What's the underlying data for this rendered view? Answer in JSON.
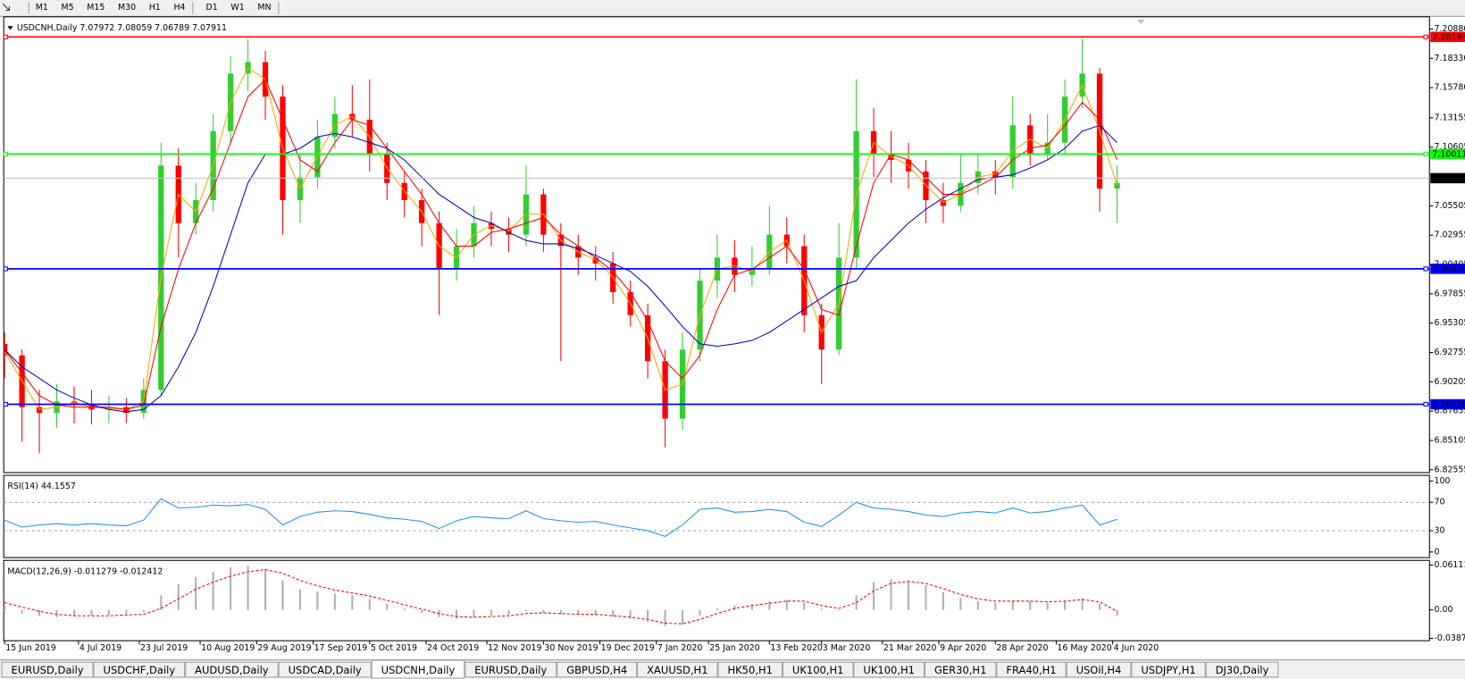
{
  "toolbar": {
    "timeframes": [
      "M1",
      "M5",
      "M15",
      "M30",
      "H1",
      "H4",
      "D1",
      "W1",
      "MN"
    ]
  },
  "tabs": {
    "items": [
      "EURUSD,Daily",
      "USDCHF,Daily",
      "AUDUSD,Daily",
      "USDCAD,Daily",
      "USDCNH,Daily",
      "EURUSD,Daily",
      "GBPUSD,H4",
      "XAUUSD,H1",
      "HK50,H1",
      "UK100,H1",
      "UK100,H1",
      "GER30,H1",
      "FRA40,H1",
      "USOil,H4",
      "USDJPY,H1",
      "DJ30,Daily"
    ],
    "active": 4
  },
  "chart_data": [
    {
      "type": "candlestick",
      "title": "USDCNH,Daily  7.07972 7.08059 7.06789 7.07911",
      "up_color": "#32cd32",
      "down_color": "#ff0000",
      "x": [
        0,
        4,
        8,
        12,
        16,
        20,
        24,
        28,
        32,
        36,
        40,
        44,
        48,
        52,
        56,
        60,
        64,
        68,
        72,
        76,
        80,
        84,
        88,
        92,
        96,
        100,
        104,
        108,
        112,
        116,
        120,
        124,
        128,
        132,
        136,
        140,
        144,
        148,
        152,
        156,
        160,
        164,
        168,
        172,
        176,
        180,
        184,
        188,
        192,
        196,
        200,
        204,
        208,
        212,
        216,
        220,
        224,
        228,
        232,
        236,
        240,
        244,
        248,
        252,
        256
      ],
      "open": [
        6.935,
        6.925,
        6.88,
        6.875,
        6.885,
        6.882,
        6.878,
        6.88,
        6.875,
        6.895,
        7.09,
        7.04,
        7.06,
        7.12,
        7.17,
        7.18,
        7.15,
        7.06,
        7.08,
        7.115,
        7.135,
        7.13,
        7.1,
        7.075,
        7.06,
        7.04,
        7.0,
        7.02,
        7.04,
        7.035,
        7.03,
        7.065,
        7.03,
        7.02,
        7.01,
        7.005,
        6.98,
        6.96,
        6.92,
        6.87,
        6.93,
        6.99,
        7.01,
        6.995,
        7.0,
        7.03,
        7.02,
        6.96,
        6.93,
        7.01,
        7.12,
        7.1,
        7.095,
        7.085,
        7.06,
        7.055,
        7.075,
        7.085,
        7.08,
        7.125,
        7.1,
        7.11,
        7.15,
        7.17,
        7.07
      ],
      "high": [
        6.945,
        6.93,
        6.895,
        6.9,
        6.898,
        6.895,
        6.89,
        6.888,
        6.905,
        7.11,
        7.105,
        7.075,
        7.135,
        7.185,
        7.2,
        7.19,
        7.16,
        7.1,
        7.13,
        7.15,
        7.16,
        7.165,
        7.11,
        7.085,
        7.07,
        7.05,
        7.035,
        7.055,
        7.05,
        7.045,
        7.09,
        7.07,
        7.04,
        7.03,
        7.02,
        7.015,
        6.99,
        6.97,
        6.93,
        6.945,
        7.0,
        7.03,
        7.025,
        7.02,
        7.055,
        7.045,
        7.03,
        6.97,
        7.04,
        7.165,
        7.14,
        7.12,
        7.11,
        7.095,
        7.075,
        7.1,
        7.1,
        7.095,
        7.15,
        7.135,
        7.135,
        7.165,
        7.2,
        7.175,
        7.09
      ],
      "low": [
        6.905,
        6.85,
        6.84,
        6.862,
        6.866,
        6.865,
        6.866,
        6.866,
        6.87,
        6.89,
        7.01,
        7.03,
        7.05,
        7.11,
        7.155,
        7.13,
        7.03,
        7.04,
        7.07,
        7.105,
        7.115,
        7.085,
        7.06,
        7.045,
        7.02,
        6.96,
        6.99,
        7.01,
        7.02,
        7.015,
        7.02,
        7.015,
        6.92,
        6.995,
        6.99,
        6.97,
        6.95,
        6.905,
        6.845,
        6.86,
        6.92,
        6.975,
        6.98,
        6.985,
        6.995,
        7.005,
        6.945,
        6.9,
        6.925,
        7.0,
        7.08,
        7.075,
        7.07,
        7.04,
        7.04,
        7.05,
        7.065,
        7.065,
        7.07,
        7.09,
        7.095,
        7.1,
        7.14,
        7.05,
        7.04
      ],
      "close": [
        6.925,
        6.88,
        6.875,
        6.885,
        6.882,
        6.878,
        6.88,
        6.875,
        6.895,
        7.09,
        7.04,
        7.06,
        7.12,
        7.17,
        7.18,
        7.15,
        7.06,
        7.08,
        7.115,
        7.135,
        7.13,
        7.1,
        7.075,
        7.06,
        7.04,
        7.0,
        7.02,
        7.04,
        7.035,
        7.03,
        7.065,
        7.03,
        7.02,
        7.01,
        7.005,
        6.98,
        6.96,
        6.92,
        6.87,
        6.93,
        6.99,
        7.01,
        6.995,
        7.0,
        7.03,
        7.02,
        6.96,
        6.93,
        7.01,
        7.12,
        7.1,
        7.095,
        7.085,
        7.06,
        7.055,
        7.075,
        7.085,
        7.08,
        7.125,
        7.1,
        7.11,
        7.15,
        7.17,
        7.07,
        7.075
      ],
      "series": [
        {
          "color": "#ffa500",
          "style": "line",
          "values": [
            6.928,
            6.903,
            6.878,
            6.88,
            6.884,
            6.88,
            6.879,
            6.878,
            6.885,
            6.993,
            7.065,
            7.05,
            7.09,
            7.145,
            7.175,
            7.165,
            7.105,
            7.07,
            7.098,
            7.125,
            7.133,
            7.115,
            7.088,
            7.068,
            7.05,
            7.02,
            7.01,
            7.03,
            7.038,
            7.033,
            7.048,
            7.048,
            7.025,
            7.015,
            7.008,
            6.993,
            6.97,
            6.94,
            6.895,
            6.9,
            6.96,
            7.0,
            7.003,
            6.998,
            7.015,
            7.025,
            6.99,
            6.945,
            6.97,
            7.065,
            7.11,
            7.098,
            7.09,
            7.073,
            7.058,
            7.065,
            7.08,
            7.083,
            7.103,
            7.113,
            7.105,
            7.13,
            7.16,
            7.12,
            7.073
          ]
        },
        {
          "color": "#ff0000",
          "style": "line",
          "values": [
            6.93,
            6.91,
            6.89,
            6.882,
            6.88,
            6.88,
            6.88,
            6.878,
            6.882,
            6.95,
            7.0,
            7.04,
            7.07,
            7.11,
            7.15,
            7.165,
            7.13,
            7.095,
            7.085,
            7.11,
            7.13,
            7.125,
            7.105,
            7.085,
            7.065,
            7.04,
            7.02,
            7.02,
            7.032,
            7.035,
            7.04,
            7.045,
            7.03,
            7.02,
            7.01,
            6.998,
            6.98,
            6.955,
            6.92,
            6.905,
            6.925,
            6.965,
            6.995,
            7.0,
            7.01,
            7.02,
            7.0,
            6.965,
            6.96,
            7.02,
            7.075,
            7.1,
            7.095,
            7.08,
            7.065,
            7.065,
            7.072,
            7.08,
            7.095,
            7.105,
            7.108,
            7.125,
            7.145,
            7.13,
            7.095
          ]
        },
        {
          "color": "#0000cd",
          "style": "line",
          "values": [
            6.93,
            6.915,
            6.905,
            6.895,
            6.888,
            6.882,
            6.878,
            6.876,
            6.878,
            6.89,
            6.915,
            6.945,
            6.985,
            7.03,
            7.075,
            7.1,
            7.1,
            7.105,
            7.115,
            7.118,
            7.115,
            7.11,
            7.105,
            7.095,
            7.08,
            7.065,
            7.055,
            7.045,
            7.04,
            7.032,
            7.025,
            7.022,
            7.022,
            7.018,
            7.012,
            7.005,
            6.998,
            6.985,
            6.968,
            6.95,
            6.935,
            6.933,
            6.935,
            6.938,
            6.945,
            6.955,
            6.965,
            6.975,
            6.985,
            6.99,
            7.01,
            7.025,
            7.04,
            7.052,
            7.062,
            7.07,
            7.078,
            7.08,
            7.082,
            7.088,
            7.095,
            7.105,
            7.12,
            7.125,
            7.11
          ]
        }
      ],
      "levels": [
        {
          "value": 7.20193,
          "label": "7.20193",
          "color": "#ff0000",
          "label_fill": "#ff0000"
        },
        {
          "value": 7.10011,
          "label": "7.10011",
          "color": "#00ff00",
          "label_fill": "#00ff00"
        },
        {
          "value": 7.07911,
          "label": "7.07911",
          "color": "#c0c0c0",
          "label_fill": "#000000"
        },
        {
          "value": 7.00029,
          "label": "7.00029",
          "color": "#0000ff",
          "label_fill": "#0000ff"
        },
        {
          "value": 6.8825,
          "label": "6.88250",
          "color": "#0000ff",
          "label_fill": "#0000ff"
        }
      ],
      "xlim": [
        -0.2,
        327.9
      ],
      "ylim": [
        6.8231,
        7.2194
      ],
      "yticks": [
        {
          "value": 7.2088,
          "label": "7.20880"
        },
        {
          "value": 7.1833,
          "label": "7.18330"
        },
        {
          "value": 7.1578,
          "label": "7.15780"
        },
        {
          "value": 7.13155,
          "label": "7.13155"
        },
        {
          "value": 7.10605,
          "label": "7.10605"
        },
        {
          "value": 7.05505,
          "label": "7.05505"
        },
        {
          "value": 7.02955,
          "label": "7.02955"
        },
        {
          "value": 7.00405,
          "label": "7.00405"
        },
        {
          "value": 6.97855,
          "label": "6.97855"
        },
        {
          "value": 6.95305,
          "label": "6.95305"
        },
        {
          "value": 6.92755,
          "label": "6.92755"
        },
        {
          "value": 6.90205,
          "label": "6.90205"
        },
        {
          "value": 6.87655,
          "label": "6.87655"
        },
        {
          "value": 6.85105,
          "label": "6.85105"
        },
        {
          "value": 6.82555,
          "label": "6.82555"
        }
      ],
      "xticks": [
        {
          "value": 0,
          "label": "15 Jun 2019"
        },
        {
          "value": 17,
          "label": "4 Jul 2019"
        },
        {
          "value": 31,
          "label": "23 Jul 2019"
        },
        {
          "value": 45,
          "label": "10 Aug 2019"
        },
        {
          "value": 58,
          "label": "29 Aug 2019"
        },
        {
          "value": 71,
          "label": "17 Sep 2019"
        },
        {
          "value": 84,
          "label": "5 Oct 2019"
        },
        {
          "value": 97,
          "label": "24 Oct 2019"
        },
        {
          "value": 111,
          "label": "12 Nov 2019"
        },
        {
          "value": 124,
          "label": "30 Nov 2019"
        },
        {
          "value": 137,
          "label": "19 Dec 2019"
        },
        {
          "value": 150,
          "label": "7 Jan 2020"
        },
        {
          "value": 162,
          "label": "25 Jan 2020"
        },
        {
          "value": 176,
          "label": "13 Feb 2020"
        },
        {
          "value": 188,
          "label": "3 Mar 2020"
        },
        {
          "value": 202,
          "label": "21 Mar 2020"
        },
        {
          "value": 215,
          "label": "9 Apr 2020"
        },
        {
          "value": 228,
          "label": "28 Apr 2020"
        },
        {
          "value": 242,
          "label": "16 May 2020"
        },
        {
          "value": 255,
          "label": "4 Jun 2020"
        }
      ]
    },
    {
      "type": "line",
      "title": "RSI(14) 44.1557",
      "x": [
        0,
        4,
        8,
        12,
        16,
        20,
        24,
        28,
        32,
        36,
        40,
        44,
        48,
        52,
        56,
        60,
        64,
        68,
        72,
        76,
        80,
        84,
        88,
        92,
        96,
        100,
        104,
        108,
        112,
        116,
        120,
        124,
        128,
        132,
        136,
        140,
        144,
        148,
        152,
        156,
        160,
        164,
        168,
        172,
        176,
        180,
        184,
        188,
        192,
        196,
        200,
        204,
        208,
        212,
        216,
        220,
        224,
        228,
        232,
        236,
        240,
        244,
        248,
        252,
        256
      ],
      "series": [
        {
          "color": "#1e90ff",
          "style": "line",
          "values": [
            45,
            35,
            38,
            40,
            38,
            40,
            38,
            37,
            45,
            75,
            62,
            63,
            66,
            65,
            67,
            60,
            38,
            50,
            56,
            58,
            57,
            53,
            48,
            46,
            43,
            33,
            44,
            50,
            48,
            47,
            58,
            47,
            44,
            42,
            43,
            38,
            34,
            30,
            22,
            38,
            60,
            62,
            56,
            57,
            60,
            57,
            42,
            36,
            52,
            70,
            62,
            60,
            57,
            52,
            50,
            55,
            57,
            55,
            62,
            55,
            57,
            62,
            66,
            38,
            46
          ]
        }
      ],
      "levels": [
        70,
        30
      ],
      "xlim": [
        -0.2,
        327.9
      ],
      "ylim": [
        -7.9,
        107.9
      ],
      "yticks": [
        100,
        70,
        30,
        0
      ]
    },
    {
      "type": "bar",
      "title": "MACD(12,26,9) -0.011279 -0.012412",
      "x": [
        0,
        4,
        8,
        12,
        16,
        20,
        24,
        28,
        32,
        36,
        40,
        44,
        48,
        52,
        56,
        60,
        64,
        68,
        72,
        76,
        80,
        84,
        88,
        92,
        96,
        100,
        104,
        108,
        112,
        116,
        120,
        124,
        128,
        132,
        136,
        140,
        144,
        148,
        152,
        156,
        160,
        164,
        168,
        172,
        176,
        180,
        184,
        188,
        192,
        196,
        200,
        204,
        208,
        212,
        216,
        220,
        224,
        228,
        232,
        236,
        240,
        244,
        248,
        252,
        256
      ],
      "series": [
        {
          "color": "#b0b0b0",
          "style": "bar",
          "values": [
            0.005,
            -0.005,
            -0.008,
            -0.01,
            -0.009,
            -0.008,
            -0.007,
            -0.006,
            -0.003,
            0.02,
            0.035,
            0.045,
            0.052,
            0.058,
            0.06,
            0.055,
            0.04,
            0.028,
            0.025,
            0.022,
            0.02,
            0.015,
            0.008,
            0.002,
            -0.004,
            -0.01,
            -0.012,
            -0.01,
            -0.008,
            -0.007,
            -0.002,
            -0.004,
            -0.006,
            -0.006,
            -0.007,
            -0.009,
            -0.012,
            -0.016,
            -0.022,
            -0.02,
            -0.008,
            0.002,
            0.006,
            0.008,
            0.012,
            0.014,
            0.01,
            0.002,
            0.0,
            0.02,
            0.038,
            0.042,
            0.04,
            0.034,
            0.024,
            0.016,
            0.012,
            0.01,
            0.012,
            0.012,
            0.01,
            0.012,
            0.016,
            0.008,
            -0.008
          ]
        },
        {
          "color": "#ff0000",
          "style": "dashed",
          "values": [
            0.01,
            0.004,
            -0.002,
            -0.006,
            -0.008,
            -0.008,
            -0.008,
            -0.007,
            -0.006,
            0.002,
            0.015,
            0.028,
            0.038,
            0.046,
            0.052,
            0.055,
            0.05,
            0.04,
            0.033,
            0.027,
            0.023,
            0.019,
            0.013,
            0.007,
            0.001,
            -0.005,
            -0.009,
            -0.01,
            -0.009,
            -0.008,
            -0.005,
            -0.004,
            -0.005,
            -0.006,
            -0.006,
            -0.008,
            -0.01,
            -0.013,
            -0.018,
            -0.019,
            -0.013,
            -0.005,
            0.002,
            0.006,
            0.009,
            0.012,
            0.012,
            0.006,
            0.002,
            0.01,
            0.026,
            0.036,
            0.039,
            0.036,
            0.029,
            0.021,
            0.015,
            0.012,
            0.012,
            0.012,
            0.011,
            0.012,
            0.014,
            0.011,
            -0.002
          ]
        }
      ],
      "xlim": [
        -0.2,
        327.9
      ],
      "ylim": [
        -0.042,
        0.0675
      ],
      "yticks": [
        {
          "value": 0.061119,
          "label": "0.061119"
        },
        {
          "value": 0,
          "label": "0.00"
        },
        {
          "value": -0.038777,
          "label": "-0.038777"
        }
      ]
    }
  ]
}
